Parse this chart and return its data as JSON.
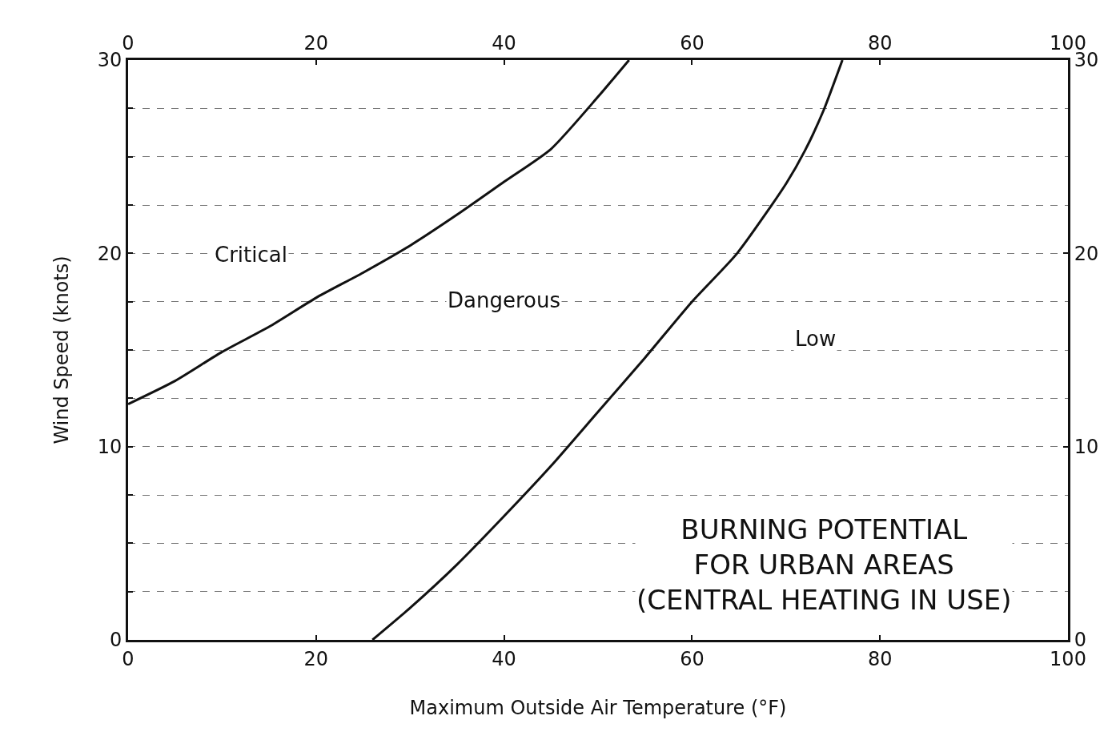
{
  "chart_data": {
    "type": "line",
    "title": "BURNING POTENTIAL\nFOR URBAN AREAS\n(CENTRAL HEATING IN USE)",
    "xlabel": "Maximum Outside Air Temperature (°F)",
    "ylabel": "Wind Speed (knots)",
    "series": [
      {
        "color": "#111111",
        "x": [
          0,
          5,
          10,
          15,
          20,
          25,
          30,
          35,
          40,
          45,
          50,
          53.3
        ],
        "values": [
          12.2,
          13.4,
          14.9,
          16.2,
          17.7,
          19,
          20.4,
          22,
          23.7,
          25.4,
          28.1,
          30
        ]
      },
      {
        "color": "#111111",
        "x": [
          26,
          30,
          35,
          40,
          45,
          50,
          55,
          60,
          64.8,
          70,
          72,
          74,
          76
        ],
        "values": [
          0,
          1.65,
          3.9,
          6.4,
          9,
          11.8,
          14.6,
          17.5,
          20,
          23.6,
          25.3,
          27.4,
          30
        ]
      }
    ],
    "annotations": [
      "Critical",
      "Dangerous",
      "Low"
    ],
    "xlim": [
      0,
      100
    ],
    "xticks": [
      0,
      20,
      40,
      60,
      80,
      100
    ],
    "x2lim": [
      0,
      100
    ],
    "x2ticks": [
      0,
      20,
      40,
      60,
      80,
      100
    ],
    "ylim": [
      0,
      30
    ],
    "yticks": [
      0,
      {
        "value": 2.5,
        "label": null
      },
      {
        "value": 5,
        "label": null
      },
      {
        "value": 7.5,
        "label": null
      },
      10,
      {
        "value": 12.5,
        "label": null
      },
      {
        "value": 15,
        "label": null
      },
      {
        "value": 17.5,
        "label": null
      },
      20,
      {
        "value": 22.5,
        "label": null
      },
      {
        "value": 25,
        "label": null
      },
      {
        "value": 27.5,
        "label": null
      },
      30
    ],
    "y2lim": [
      0,
      30
    ],
    "y2ticks": [
      0,
      10,
      20,
      30
    ],
    "grid": "y",
    "marker": "none",
    "line_style": "solid"
  }
}
